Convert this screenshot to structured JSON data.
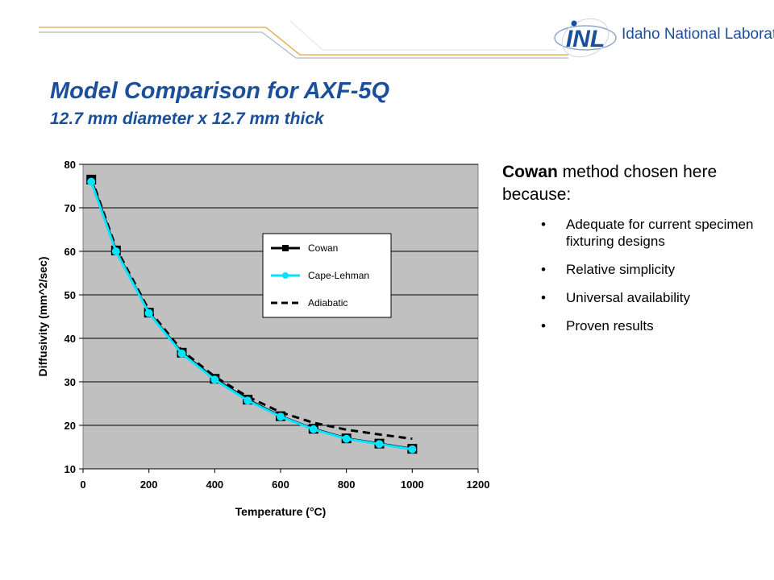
{
  "header": {
    "logo_mark": "INL",
    "org_name": "Idaho National Laboratory",
    "title": "Model Comparison for AXF-5Q",
    "subtitle": "12.7 mm diameter x 12.7 mm thick"
  },
  "colors": {
    "title": "#1b4f9c",
    "accent_line": "#e8a23a",
    "cowan": "#000000",
    "cape_lehman": "#00e5ff",
    "adiabatic": "#000000",
    "plot_background": "#c0c0c0"
  },
  "right_panel": {
    "lead_highlight": "Cowan",
    "lead_rest": " method chosen here because:",
    "bullets": [
      "Adequate for current specimen fixturing designs",
      "Relative simplicity",
      "Universal availability",
      "Proven results"
    ]
  },
  "chart_data": {
    "type": "line",
    "title": "",
    "xlabel": "Temperature (°C)",
    "ylabel": "Diffusivity (mm^2/sec)",
    "xlim": [
      0,
      1200
    ],
    "ylim": [
      10,
      80
    ],
    "xticks": [
      0,
      200,
      400,
      600,
      800,
      1000,
      1200
    ],
    "yticks": [
      10,
      20,
      30,
      40,
      50,
      60,
      70,
      80
    ],
    "grid": "horizontal",
    "legend_position": "upper-right",
    "series": [
      {
        "name": "Cowan",
        "style": "solid",
        "marker": "square",
        "x": [
          25,
          100,
          200,
          300,
          400,
          500,
          600,
          700,
          800,
          900,
          1000
        ],
        "y": [
          76.5,
          60.2,
          45.9,
          36.7,
          30.7,
          25.9,
          22.1,
          19.2,
          17.0,
          15.8,
          14.6
        ]
      },
      {
        "name": "Cape-Lehman",
        "style": "solid",
        "marker": "circle",
        "x": [
          25,
          100,
          200,
          300,
          400,
          500,
          600,
          700,
          800,
          900,
          1000
        ],
        "y": [
          76.0,
          60.0,
          45.8,
          36.5,
          30.5,
          25.7,
          22.0,
          19.1,
          16.9,
          15.7,
          14.5
        ]
      },
      {
        "name": "Adiabatic",
        "style": "dashed",
        "marker": "none",
        "x": [
          25,
          100,
          200,
          300,
          400,
          500,
          600,
          700,
          800,
          900,
          1000
        ],
        "y": [
          77.0,
          60.8,
          46.5,
          37.2,
          31.2,
          26.6,
          23.0,
          20.6,
          19.0,
          17.9,
          16.9
        ]
      }
    ]
  }
}
